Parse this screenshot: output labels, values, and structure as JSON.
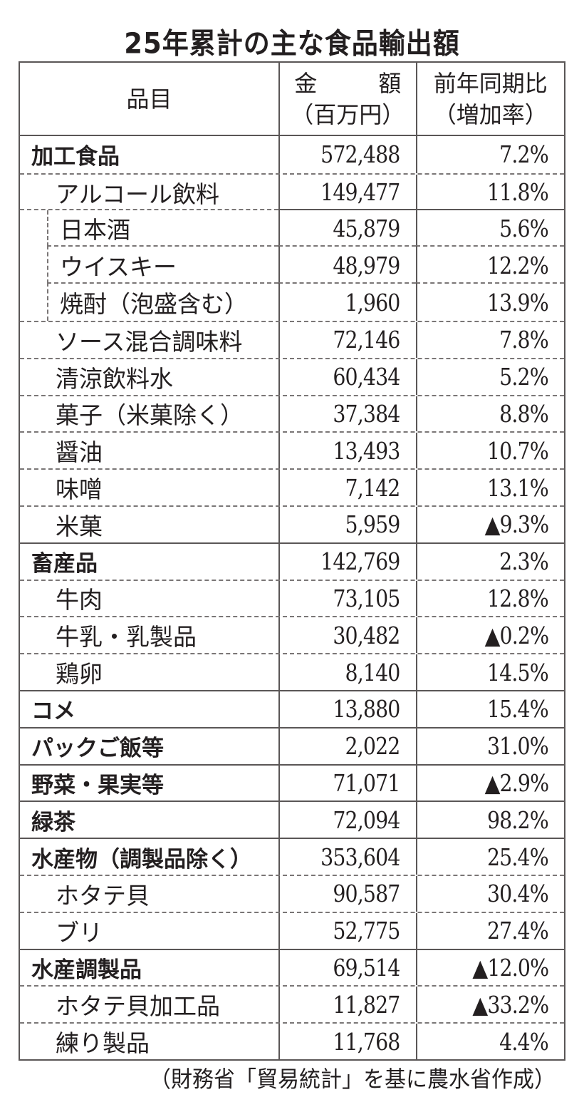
{
  "title": "25年累計の主な食品輸出額",
  "table": {
    "headers": {
      "item": "品目",
      "amount_line1_a": "金",
      "amount_line1_b": "額",
      "amount_line2": "（百万円）",
      "change_line1": "前年同期比",
      "change_line2": "（増加率）"
    },
    "rows": [
      {
        "name": "加工食品",
        "amount": "572,488",
        "change": "7.2%",
        "level": "category"
      },
      {
        "name": "アルコール飲料",
        "amount": "149,477",
        "change": "11.8%",
        "level": "sub"
      },
      {
        "name": "日本酒",
        "amount": "45,879",
        "change": "5.6%",
        "level": "subsub"
      },
      {
        "name": "ウイスキー",
        "amount": "48,979",
        "change": "12.2%",
        "level": "subsub"
      },
      {
        "name": "焼酎（泡盛含む）",
        "amount": "1,960",
        "change": "13.9%",
        "level": "subsub"
      },
      {
        "name": "ソース混合調味料",
        "amount": "72,146",
        "change": "7.8%",
        "level": "sub"
      },
      {
        "name": "清涼飲料水",
        "amount": "60,434",
        "change": "5.2%",
        "level": "sub"
      },
      {
        "name": "菓子（米菓除く）",
        "amount": "37,384",
        "change": "8.8%",
        "level": "sub"
      },
      {
        "name": "醤油",
        "amount": "13,493",
        "change": "10.7%",
        "level": "sub"
      },
      {
        "name": "味噌",
        "amount": "7,142",
        "change": "13.1%",
        "level": "sub"
      },
      {
        "name": "米菓",
        "amount": "5,959",
        "change": "▲9.3%",
        "level": "sub"
      },
      {
        "name": "畜産品",
        "amount": "142,769",
        "change": "2.3%",
        "level": "category"
      },
      {
        "name": "牛肉",
        "amount": "73,105",
        "change": "12.8%",
        "level": "sub"
      },
      {
        "name": "牛乳・乳製品",
        "amount": "30,482",
        "change": "▲0.2%",
        "level": "sub"
      },
      {
        "name": "鶏卵",
        "amount": "8,140",
        "change": "14.5%",
        "level": "sub"
      },
      {
        "name": "コメ",
        "amount": "13,880",
        "change": "15.4%",
        "level": "category"
      },
      {
        "name": "パックご飯等",
        "amount": "2,022",
        "change": "31.0%",
        "level": "category"
      },
      {
        "name": "野菜・果実等",
        "amount": "71,071",
        "change": "▲2.9%",
        "level": "category"
      },
      {
        "name": "緑茶",
        "amount": "72,094",
        "change": "98.2%",
        "level": "category"
      },
      {
        "name": "水産物（調製品除く）",
        "amount": "353,604",
        "change": "25.4%",
        "level": "category"
      },
      {
        "name": "ホタテ貝",
        "amount": "90,587",
        "change": "30.4%",
        "level": "sub"
      },
      {
        "name": "ブリ",
        "amount": "52,775",
        "change": "27.4%",
        "level": "sub"
      },
      {
        "name": "水産調製品",
        "amount": "69,514",
        "change": "▲12.0%",
        "level": "category"
      },
      {
        "name": "ホタテ貝加工品",
        "amount": "11,827",
        "change": "▲33.2%",
        "level": "sub"
      },
      {
        "name": "練り製品",
        "amount": "11,768",
        "change": "4.4%",
        "level": "sub"
      }
    ]
  },
  "footer": "（財務省「貿易統計」を基に農水省作成）"
}
